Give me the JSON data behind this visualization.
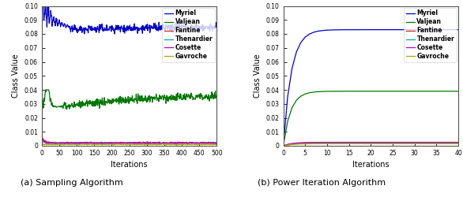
{
  "legend_labels": [
    "Myriel",
    "Valjean",
    "Fantine",
    "Thenardier",
    "Cosette",
    "Gavroche"
  ],
  "colors": [
    "#0000cc",
    "#007700",
    "#dd2222",
    "#00aaaa",
    "#bb00bb",
    "#aaaa00"
  ],
  "plot1": {
    "title": "(a) Sampling Algorithm",
    "xlabel": "Iterations",
    "ylabel": "Class Value",
    "xlim": [
      0,
      500
    ],
    "ylim": [
      0,
      0.1
    ],
    "yticks": [
      0,
      0.01,
      0.02,
      0.03,
      0.04,
      0.05,
      0.06,
      0.07,
      0.08,
      0.09,
      0.1
    ],
    "xticks": [
      0,
      50,
      100,
      150,
      200,
      250,
      300,
      350,
      400,
      450,
      500
    ]
  },
  "plot2": {
    "title": "(b) Power Iteration Algorithm",
    "xlabel": "Iterations",
    "ylabel": "Class Value",
    "xlim": [
      0,
      40
    ],
    "ylim": [
      0,
      0.1
    ],
    "yticks": [
      0,
      0.01,
      0.02,
      0.03,
      0.04,
      0.05,
      0.06,
      0.07,
      0.08,
      0.09,
      0.1
    ],
    "xticks": [
      0,
      5,
      10,
      15,
      20,
      25,
      30,
      35,
      40
    ]
  }
}
